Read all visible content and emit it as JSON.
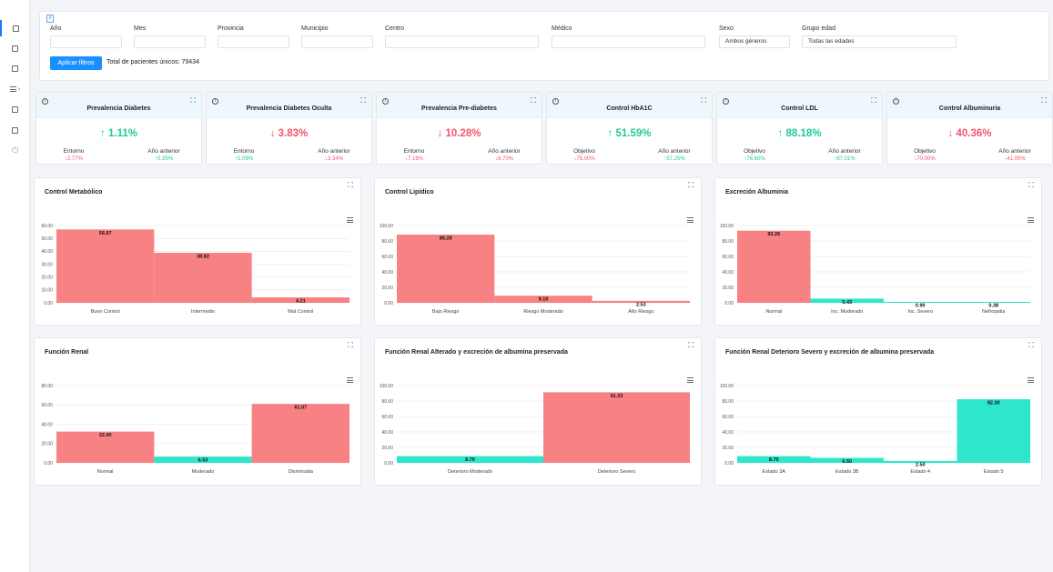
{
  "sidebar": {
    "items": [
      {
        "icon": "square-icon",
        "active": true
      },
      {
        "icon": "square-icon",
        "active": false
      },
      {
        "icon": "square-icon",
        "active": false
      },
      {
        "icon": "list-icon",
        "active": false
      },
      {
        "icon": "square-icon",
        "active": false
      },
      {
        "icon": "square-icon",
        "active": false
      },
      {
        "icon": "power-icon",
        "active": false
      }
    ]
  },
  "filters": {
    "toggle": "x",
    "fields": [
      {
        "label": "Año",
        "value": ""
      },
      {
        "label": "Mes",
        "value": ""
      },
      {
        "label": "Provincia",
        "value": ""
      },
      {
        "label": "Municipio",
        "value": ""
      },
      {
        "label": "Centro",
        "value": ""
      },
      {
        "label": "Médico",
        "value": ""
      },
      {
        "label": "Sexo",
        "value": "Ambos géneros"
      },
      {
        "label": "Grupo edad",
        "value": "Todas las edades"
      }
    ],
    "apply_label": "Aplicar filtros",
    "total_text": "Total de pacientes únicos: 79434"
  },
  "kpis": [
    {
      "title": "Prevalencia Diabetes",
      "value": "1.11%",
      "trend": "up",
      "left_label": "Entorno",
      "left_value": "2.77%",
      "left_trend": "down",
      "right_label": "Año anterior",
      "right_value": "0.35%",
      "right_trend": "up"
    },
    {
      "title": "Prevalencia Diabetes Oculta",
      "value": "3.83%",
      "trend": "down",
      "left_label": "Entorno",
      "left_value": "5.09%",
      "left_trend": "up",
      "right_label": "Año anterior",
      "right_value": "3.34%",
      "right_trend": "down"
    },
    {
      "title": "Prevalencia Pre-diabetes",
      "value": "10.28%",
      "trend": "down",
      "left_label": "Entorno",
      "left_value": "7.16%",
      "left_trend": "down",
      "right_label": "Año anterior",
      "right_value": "8.70%",
      "right_trend": "down"
    },
    {
      "title": "Control HbA1C",
      "value": "51.59%",
      "trend": "up",
      "left_label": "Objetivo",
      "left_value": "75.00%",
      "left_trend": "down",
      "right_label": "Año anterior",
      "right_value": "57.25%",
      "right_trend": "up"
    },
    {
      "title": "Control LDL",
      "value": "88.18%",
      "trend": "up",
      "left_label": "Objetivo",
      "left_value": "76.60%",
      "left_trend": "up",
      "right_label": "Año anterior",
      "right_value": "87.01%",
      "right_trend": "up"
    },
    {
      "title": "Control Albuminuria",
      "value": "40.36%",
      "trend": "down",
      "left_label": "Objetivo",
      "left_value": "70.00%",
      "left_trend": "down",
      "right_label": "Año anterior",
      "right_value": "41.00%",
      "right_trend": "down"
    }
  ],
  "colors": {
    "red_bar": "#f88183",
    "teal_bar": "#2ee6cc",
    "up": "#1fc99b",
    "down": "#f2546b"
  },
  "chart_data": [
    {
      "type": "bar",
      "title": "Control Metabólico",
      "categories": [
        "Buen Control",
        "Intermedio",
        "Mal Control"
      ],
      "values": [
        56.97,
        38.82,
        4.21
      ],
      "colors": [
        "red",
        "red",
        "red"
      ],
      "ylim": [
        0,
        60
      ],
      "yticks": [
        "0.00",
        "10.00",
        "20.00",
        "30.00",
        "40.00",
        "50.00",
        "60.00"
      ],
      "value_labels": [
        "56.97",
        "38.82",
        "4.21"
      ]
    },
    {
      "type": "bar",
      "title": "Control Lipídico",
      "categories": [
        "Bajo Riesgo",
        "Riesgo Moderado",
        "Alto Riesgo"
      ],
      "values": [
        88.28,
        9.19,
        2.53
      ],
      "colors": [
        "red",
        "red",
        "red"
      ],
      "ylim": [
        0,
        100
      ],
      "yticks": [
        "0.00",
        "20.00",
        "40.00",
        "60.00",
        "80.00",
        "100.00"
      ],
      "value_labels": [
        "88.28",
        "9.19",
        "2.53"
      ]
    },
    {
      "type": "bar",
      "title": "Excreción Albuminia",
      "categories": [
        "Normal",
        "Inc. Moderado",
        "Inc. Severo",
        "Nefropatia"
      ],
      "values": [
        93.26,
        5.43,
        0.9,
        0.38
      ],
      "colors": [
        "red",
        "teal",
        "teal",
        "teal"
      ],
      "ylim": [
        0,
        100
      ],
      "yticks": [
        "0.00",
        "20.00",
        "40.00",
        "60.00",
        "80.00",
        "100.00"
      ],
      "value_labels": [
        "93.26",
        "5.43",
        "0.90",
        "0.38"
      ]
    },
    {
      "type": "bar",
      "title": "Función Renal",
      "categories": [
        "Normal",
        "Moderado",
        "Disminuida"
      ],
      "values": [
        32.4,
        6.53,
        61.07
      ],
      "colors": [
        "red",
        "teal",
        "red"
      ],
      "ylim": [
        0,
        80
      ],
      "yticks": [
        "0.00",
        "20.00",
        "40.00",
        "60.00",
        "80.00"
      ],
      "value_labels": [
        "32.40",
        "6.53",
        "61.07"
      ]
    },
    {
      "type": "bar",
      "title": "Función Renal Alterado y excreción de albumina preservada",
      "categories": [
        "Deterioro Moderado",
        "Deterioro Severo"
      ],
      "values": [
        8.7,
        91.33
      ],
      "colors": [
        "teal",
        "red"
      ],
      "ylim": [
        0,
        100
      ],
      "yticks": [
        "0.00",
        "20.00",
        "40.00",
        "60.00",
        "80.00",
        "100.00"
      ],
      "value_labels": [
        "8.70",
        "91.33"
      ]
    },
    {
      "type": "bar",
      "title": "Función Renal Deterioro Severo y excreción de albumina preservada",
      "categories": [
        "Estado 3A",
        "Estado 3B",
        "Estado 4",
        "Estado 5"
      ],
      "values": [
        8.7,
        6.5,
        2.5,
        82.3
      ],
      "colors": [
        "teal",
        "teal",
        "teal",
        "teal"
      ],
      "ylim": [
        0,
        100
      ],
      "yticks": [
        "0.00",
        "20.00",
        "40.00",
        "60.00",
        "80.00",
        "100.00"
      ],
      "value_labels": [
        "8.70",
        "6.50",
        "2.50",
        "82.30"
      ]
    }
  ]
}
